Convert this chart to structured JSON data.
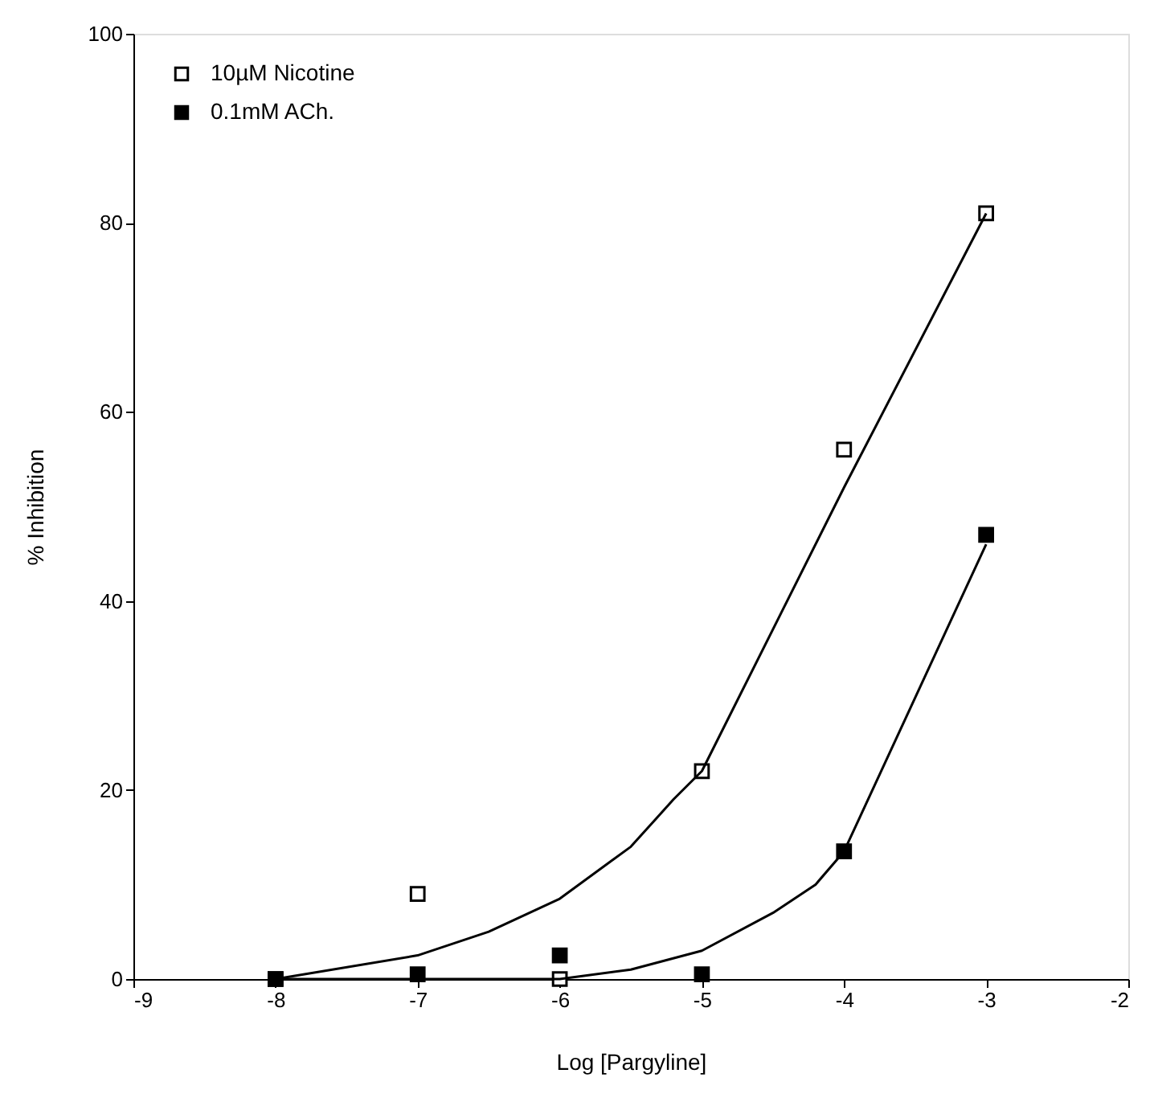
{
  "chart_data": {
    "type": "scatter",
    "xlabel": "Log [Pargyline]",
    "ylabel": "% Inhibition",
    "xlim": [
      -9,
      -2
    ],
    "xticks": [
      -9,
      -8,
      -7,
      -6,
      -5,
      -4,
      -3,
      -2
    ],
    "ylim": [
      0,
      100
    ],
    "yticks": [
      0,
      20,
      40,
      60,
      80,
      100
    ],
    "grid": false,
    "legend": "top left",
    "marker": "square",
    "series": [
      {
        "name": "10µM Nicotine",
        "color": "#ffffff",
        "x": [
          -8,
          -7,
          -6,
          -5,
          -4,
          -3
        ],
        "values": [
          0,
          9,
          0,
          22,
          56,
          81
        ]
      },
      {
        "name": "0.1mM ACh.",
        "color": "#000000",
        "x": [
          -8,
          -7,
          -6,
          -5,
          -4,
          -3
        ],
        "values": [
          0,
          0.5,
          2.5,
          0.5,
          13.5,
          47
        ]
      },
      {
        "type": "line",
        "color": "#000000",
        "marker": "none",
        "x": [
          -8,
          -7,
          -6.5,
          -6,
          -5.5,
          -5.2,
          -5,
          -4,
          -3
        ],
        "values": [
          0,
          2.5,
          5,
          8.5,
          14,
          19,
          22,
          52,
          81
        ]
      },
      {
        "type": "line",
        "color": "#000000",
        "marker": "none",
        "x": [
          -8,
          -6,
          -5.5,
          -5,
          -4.5,
          -4.2,
          -4,
          -3
        ],
        "values": [
          0,
          0,
          1,
          3,
          7,
          10,
          13.5,
          46
        ]
      }
    ]
  }
}
